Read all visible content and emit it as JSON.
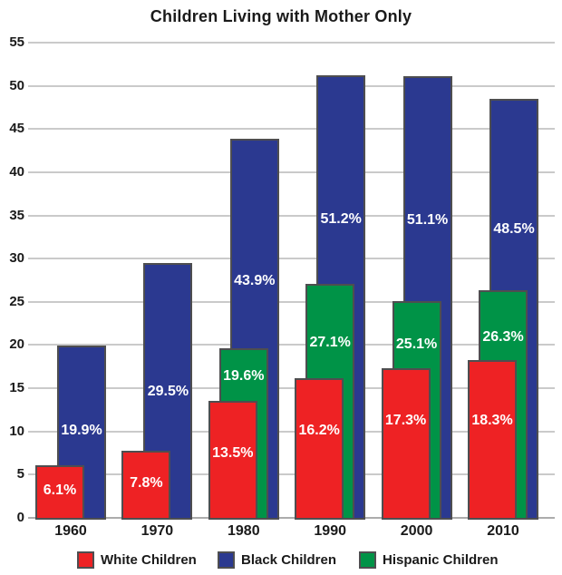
{
  "title": "Children Living with Mother Only",
  "colors": {
    "white_children": "#EE2224",
    "black_children": "#2B3990",
    "hispanic_children": "#009347",
    "bar_border": "#4E4E50",
    "gridline": "#CACACA",
    "baseline": "#ACACAC",
    "value_label_text": "#FFFFFF",
    "axis_text": "#1A1A1A"
  },
  "chart_data": {
    "type": "bar",
    "title": "Children Living with Mother Only",
    "categories": [
      "1960",
      "1970",
      "1980",
      "1990",
      "2000",
      "2010"
    ],
    "series": [
      {
        "name": "Black Children",
        "key": "black_children",
        "values": [
          19.9,
          29.5,
          43.9,
          51.2,
          51.1,
          48.5
        ],
        "labels": [
          "19.9%",
          "29.5%",
          "43.9%",
          "51.2%",
          "51.1%",
          "48.5%"
        ],
        "label_at": [
          10.1,
          14.6,
          27.4,
          34.5,
          34.4,
          33.4
        ]
      },
      {
        "name": "Hispanic Children",
        "key": "hispanic_children",
        "values": [
          null,
          null,
          19.6,
          27.1,
          25.1,
          26.3
        ],
        "labels": [
          null,
          null,
          "19.6%",
          "27.1%",
          "25.1%",
          "26.3%"
        ],
        "label_at": [
          null,
          null,
          16.4,
          20.3,
          20.0,
          20.9
        ]
      },
      {
        "name": "White Children",
        "key": "white_children",
        "values": [
          6.1,
          7.8,
          13.5,
          16.2,
          17.3,
          18.3
        ],
        "labels": [
          "6.1%",
          "7.8%",
          "13.5%",
          "16.2%",
          "17.3%",
          "18.3%"
        ],
        "label_at": [
          3.2,
          4.0,
          7.4,
          10.1,
          11.2,
          11.2
        ]
      }
    ],
    "xlabel": "",
    "ylabel": "",
    "ylim": [
      0,
      55
    ],
    "ytick_step": 5,
    "yticks": [
      0,
      5,
      10,
      15,
      20,
      25,
      30,
      35,
      40,
      45,
      50,
      55
    ],
    "grid": true,
    "legend_position": "bottom"
  },
  "legend": {
    "items": [
      {
        "label": "White Children",
        "key": "white_children"
      },
      {
        "label": "Black Children",
        "key": "black_children"
      },
      {
        "label": "Hispanic Children",
        "key": "hispanic_children"
      }
    ]
  }
}
